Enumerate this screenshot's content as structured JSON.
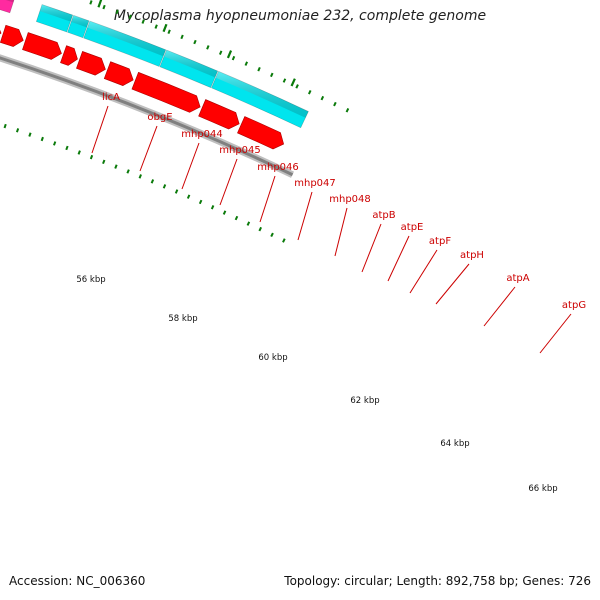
{
  "title": "Mycoplasma hyopneumoniae 232, complete genome",
  "footer": {
    "accession": "Accession: NC_006360",
    "stats": "Topology: circular; Length: 892,758 bp; Genes: 726"
  },
  "colors": {
    "label": "#cc0000",
    "cds": "#ff0000",
    "tick": "#0a7a0a",
    "backbone": "#808080",
    "cogs": [
      "#0000ff",
      "#ff2aa0",
      "#6b8e23",
      "#c0c0c0",
      "#ff2aa0",
      "#00e5ee"
    ]
  },
  "gene_labels": [
    "licA",
    "obgE",
    "mhp044",
    "mhp045",
    "mhp046",
    "mhp047",
    "mhp048",
    "atpB",
    "atpE",
    "atpF",
    "atpH",
    "atpA",
    "atpG"
  ],
  "kbp_labels": [
    "56 kbp",
    "58 kbp",
    "60 kbp",
    "62 kbp",
    "64 kbp",
    "66 kbp"
  ]
}
